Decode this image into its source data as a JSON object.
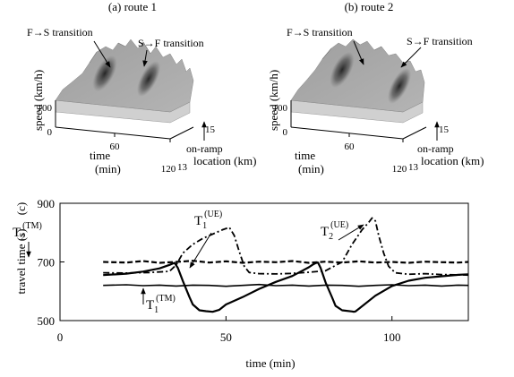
{
  "panels": {
    "a": {
      "title": "(a) route 1",
      "annotations": {
        "fs": "F→S transition",
        "sf": "S→F transition",
        "onramp": "on-ramp"
      },
      "zlabel": "speed (km/h)",
      "xlabel": [
        "time",
        "(min)"
      ],
      "ylabel": "location (km)",
      "ticks": {
        "z": [
          "100",
          "0"
        ],
        "x": [
          "60",
          "120"
        ],
        "y": [
          "15",
          "13"
        ]
      }
    },
    "b": {
      "title": "(b) route 2",
      "annotations": {
        "fs": "F→S transition",
        "sf": "S→F transition",
        "onramp": "on-ramp"
      },
      "zlabel": "speed (km/h)",
      "xlabel": [
        "time",
        "(min)"
      ],
      "ylabel": "location (km)",
      "ticks": {
        "z": [
          "100",
          "0"
        ],
        "x": [
          "60",
          "120"
        ],
        "y": [
          "15",
          "13"
        ]
      }
    }
  },
  "chart_data": {
    "type": "line",
    "panel_label": "(c)",
    "xlabel": "time (min)",
    "ylabel": "travel time (s)",
    "xlim": [
      0,
      123
    ],
    "ylim": [
      500,
      900
    ],
    "xticks": [
      0,
      50,
      100
    ],
    "yticks": [
      500,
      700,
      900
    ],
    "series": [
      {
        "name": "T1(UE)",
        "base": "T",
        "sub": "1",
        "sup": "(UE)",
        "style": "solid",
        "width": 2.2,
        "x": [
          13,
          20,
          25,
          30,
          33,
          34.5,
          35.5,
          37,
          39,
          40,
          42,
          44,
          46,
          48,
          50,
          55,
          60,
          65,
          70,
          73,
          75,
          76,
          77,
          77.7,
          78.5,
          80,
          82,
          83,
          85,
          88,
          88.5,
          89,
          90,
          95,
          100,
          105,
          110,
          115,
          120,
          123
        ],
        "y": [
          655,
          660,
          667,
          678,
          690,
          697,
          680,
          635,
          580,
          555,
          535,
          532,
          530,
          537,
          555,
          580,
          608,
          632,
          652,
          670,
          682,
          690,
          696,
          698,
          680,
          630,
          578,
          550,
          535,
          531,
          530,
          531,
          540,
          585,
          618,
          636,
          646,
          651,
          656,
          658
        ]
      },
      {
        "name": "T2(UE)",
        "base": "T",
        "sub": "2",
        "sup": "(UE)",
        "style": "dashdot",
        "width": 1.8,
        "x": [
          13,
          20,
          27,
          33,
          35,
          37,
          40,
          43,
          46,
          49,
          51,
          52.5,
          54,
          55.5,
          57,
          60,
          65,
          70,
          75,
          80,
          85,
          88,
          91,
          93,
          94,
          95,
          96,
          97.5,
          99,
          101,
          105,
          110,
          115,
          120,
          123
        ],
        "y": [
          663,
          662,
          664,
          668,
          690,
          730,
          760,
          780,
          795,
          810,
          818,
          790,
          735,
          685,
          664,
          660,
          659,
          661,
          665,
          670,
          700,
          760,
          810,
          835,
          850,
          840,
          790,
          730,
          685,
          663,
          658,
          660,
          657,
          656,
          655
        ]
      },
      {
        "name": "T2(TM)",
        "base": "T",
        "sub": "2",
        "sup": "(TM)",
        "style": "dashed",
        "width": 2.2,
        "x": [
          13,
          20,
          25,
          30,
          35,
          40,
          45,
          50,
          55,
          60,
          65,
          70,
          75,
          80,
          85,
          90,
          95,
          100,
          105,
          110,
          115,
          120,
          123
        ],
        "y": [
          700,
          698,
          703,
          697,
          700,
          704,
          698,
          702,
          697,
          701,
          699,
          703,
          697,
          701,
          698,
          702,
          698,
          700,
          697,
          701,
          699,
          698,
          700
        ]
      },
      {
        "name": "T1(TM)",
        "base": "T",
        "sub": "1",
        "sup": "(TM)",
        "style": "solid",
        "width": 1.6,
        "x": [
          13,
          20,
          25,
          30,
          35,
          40,
          45,
          50,
          55,
          60,
          65,
          70,
          75,
          80,
          85,
          90,
          95,
          100,
          105,
          110,
          115,
          120,
          123
        ],
        "y": [
          620,
          622,
          619,
          621,
          618,
          621,
          620,
          617,
          620,
          623,
          619,
          621,
          618,
          621,
          620,
          617,
          620,
          622,
          619,
          621,
          618,
          621,
          620
        ]
      }
    ]
  }
}
